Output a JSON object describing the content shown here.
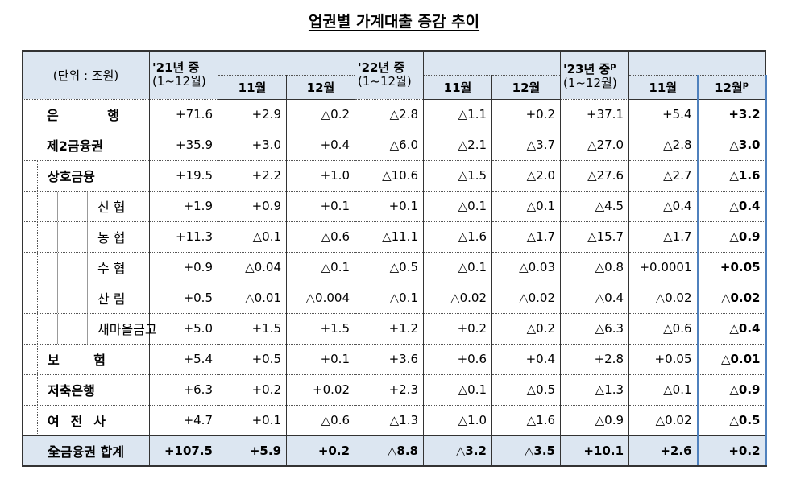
{
  "title": "업권별 가계대출 증감 추이",
  "table": {
    "unit": "(단위 : 조원)",
    "groups": [
      {
        "period": "'21년 중",
        "range": "(1~12월)",
        "months": [
          "11월",
          "12월"
        ]
      },
      {
        "period": "'22년 중",
        "range": "(1~12월)",
        "months": [
          "11월",
          "12월"
        ]
      },
      {
        "period": "'23년 중",
        "period_sup": "p",
        "range": "(1~12월)",
        "months": [
          "11월",
          "12월"
        ],
        "last_month_sup": "p"
      }
    ],
    "rows": [
      {
        "label": "은 행",
        "level": 0,
        "values": [
          "+71.6",
          "+2.9",
          "△0.2",
          "△2.8",
          "△1.1",
          "+0.2",
          "+37.1",
          "+5.4",
          "+3.2"
        ]
      },
      {
        "label": "제2금융권",
        "level": 0,
        "values": [
          "+35.9",
          "+3.0",
          "+0.4",
          "△6.0",
          "△2.1",
          "△3.7",
          "△27.0",
          "△2.8",
          "△3.0"
        ]
      },
      {
        "label": "상호금융",
        "level": 1,
        "values": [
          "+19.5",
          "+2.2",
          "+1.0",
          "△10.6",
          "△1.5",
          "△2.0",
          "△27.6",
          "△2.7",
          "△1.6"
        ]
      },
      {
        "label": "신 협",
        "level": 2,
        "values": [
          "+1.9",
          "+0.9",
          "+0.1",
          "+0.1",
          "△0.1",
          "△0.1",
          "△4.5",
          "△0.4",
          "△0.4"
        ]
      },
      {
        "label": "농 협",
        "level": 2,
        "values": [
          "+11.3",
          "△0.1",
          "△0.6",
          "△11.1",
          "△1.6",
          "△1.7",
          "△15.7",
          "△1.7",
          "△0.9"
        ]
      },
      {
        "label": "수 협",
        "level": 2,
        "values": [
          "+0.9",
          "△0.04",
          "△0.1",
          "△0.5",
          "△0.1",
          "△0.03",
          "△0.8",
          "+0.0001",
          "+0.05"
        ]
      },
      {
        "label": "산 림",
        "level": 2,
        "values": [
          "+0.5",
          "△0.01",
          "△0.004",
          "△0.1",
          "△0.02",
          "△0.02",
          "△0.4",
          "△0.02",
          "△0.02"
        ]
      },
      {
        "label": "새마을금고",
        "level": 2,
        "values": [
          "+5.0",
          "+1.5",
          "+1.5",
          "+1.2",
          "+0.2",
          "△0.2",
          "△6.3",
          "△0.6",
          "△0.4"
        ]
      },
      {
        "label": "보 험",
        "level": 1,
        "values": [
          "+5.4",
          "+0.5",
          "+0.1",
          "+3.6",
          "+0.6",
          "+0.4",
          "+2.8",
          "+0.05",
          "△0.01"
        ]
      },
      {
        "label": "저축은행",
        "level": 1,
        "values": [
          "+6.3",
          "+0.2",
          "+0.02",
          "+2.3",
          "△0.1",
          "△0.5",
          "△1.3",
          "△0.1",
          "△0.9"
        ]
      },
      {
        "label": "여 전 사",
        "level": 1,
        "values": [
          "+4.7",
          "+0.1",
          "△0.6",
          "△1.3",
          "△1.0",
          "△1.6",
          "△0.9",
          "△0.02",
          "△0.5"
        ]
      }
    ],
    "total": {
      "label": "全금융권 합계",
      "values": [
        "+107.5",
        "+5.9",
        "+0.2",
        "△8.8",
        "△3.2",
        "△3.5",
        "+10.1",
        "+2.6",
        "+0.2"
      ]
    }
  }
}
